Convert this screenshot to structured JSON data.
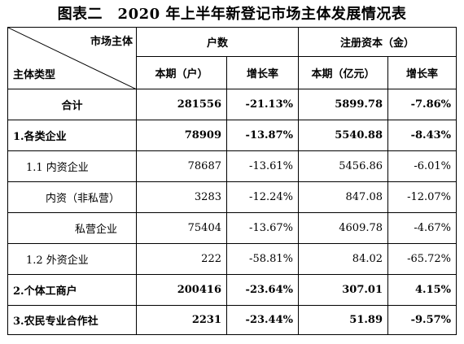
{
  "title": "图表二　2020 年上半年新登记市场主体发展情况表",
  "header": {
    "corner_top": "市场主体",
    "corner_bottom": "主体类型",
    "group1": "户数",
    "group2": "注册资本（金）",
    "col1": "本期（户）",
    "col2": "增长率",
    "col3": "本期（亿元）",
    "col4": "增长率"
  },
  "rows": [
    {
      "label": "合计",
      "households": "281556",
      "hh_growth": "-21.13%",
      "capital": "5899.78",
      "cap_growth": "-7.86%"
    },
    {
      "label": "1.各类企业",
      "households": "78909",
      "hh_growth": "-13.87%",
      "capital": "5540.88",
      "cap_growth": "-8.43%"
    },
    {
      "label": "1.1 内资企业",
      "households": "78687",
      "hh_growth": "-13.61%",
      "capital": "5456.86",
      "cap_growth": "-6.01%"
    },
    {
      "label": "内资（非私营）",
      "households": "3283",
      "hh_growth": "-12.24%",
      "capital": "847.08",
      "cap_growth": "-12.07%"
    },
    {
      "label": "私营企业",
      "households": "75404",
      "hh_growth": "-13.67%",
      "capital": "4609.78",
      "cap_growth": "-4.67%"
    },
    {
      "label": "1.2 外资企业",
      "households": "222",
      "hh_growth": "-58.81%",
      "capital": "84.02",
      "cap_growth": "-65.72%"
    },
    {
      "label": "2.个体工商户",
      "households": "200416",
      "hh_growth": "-23.64%",
      "capital": "307.01",
      "cap_growth": "4.15%"
    },
    {
      "label": "3.农民专业合作社",
      "households": "2231",
      "hh_growth": "-23.44%",
      "capital": "51.89",
      "cap_growth": "-9.57%"
    }
  ]
}
